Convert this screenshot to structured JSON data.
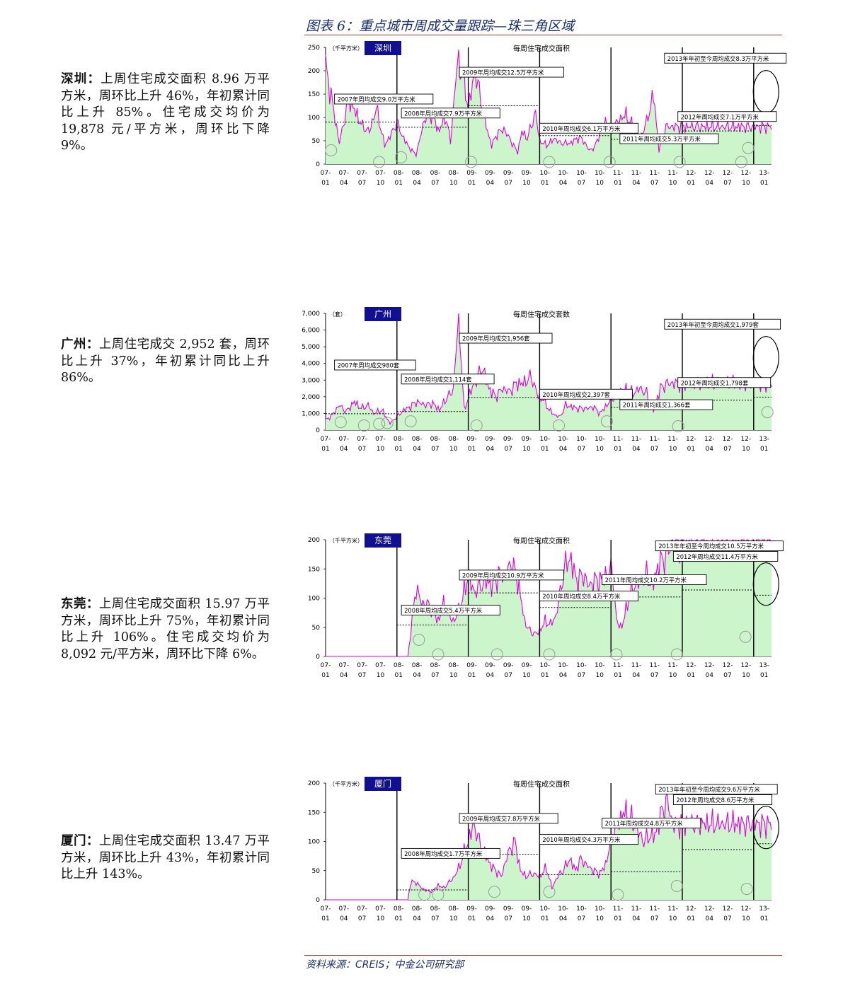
{
  "figure": {
    "title": "图表 6：重点城市周成交量跟踪—珠三角区域",
    "source": "资料来源：CREIS；中金公司研究部"
  },
  "colors": {
    "fill": "#ccf5cc",
    "line": "#e000e0",
    "navy": "#101090",
    "gray": "#9a9a9a"
  },
  "sections": [
    {
      "city": "深圳：",
      "text": "上周住宅成交面积 8.96 万平方米，周环比上升 46%，年初累计同比上升 85%。住宅成交均价为 19,878 元/平方米，周环比下降 9%。"
    },
    {
      "city": "广州：",
      "text": "上周住宅成交 2,952 套，周环比上升 37%，年初累计同比上升 86%。"
    },
    {
      "city": "东莞：",
      "text": "上周住宅成交面积 15.97 万平方米，周环比上升 75%，年初累计同比上升 106%。住宅成交均价为 8,092 元/平方米，周环比下降 6%。"
    },
    {
      "city": "厦门：",
      "text": "上周住宅成交面积 13.47 万平方米，周环比上升 43%，年初累计同比上升 143%。"
    }
  ],
  "chart_data": [
    {
      "type": "area",
      "city_label": "深圳",
      "title": "每周住宅成交面积",
      "unit": "（千平方米）",
      "ylim": [
        0,
        250
      ],
      "yticks": [
        "0",
        "50",
        "100",
        "150",
        "200",
        "250"
      ],
      "x_top": [
        "07-",
        "07-",
        "07-",
        "07-",
        "08-",
        "08-",
        "08-",
        "08-",
        "09-",
        "09-",
        "09-",
        "09-",
        "10-",
        "10-",
        "10-",
        "10-",
        "11-",
        "11-",
        "11-",
        "11-",
        "12-",
        "12-",
        "12-",
        "12-",
        "13-"
      ],
      "x_bottom": [
        "01",
        "04",
        "07",
        "10",
        "01",
        "04",
        "07",
        "10",
        "01",
        "04",
        "07",
        "10",
        "01",
        "04",
        "07",
        "10",
        "01",
        "04",
        "07",
        "10",
        "01",
        "04",
        "07",
        "10",
        "01"
      ],
      "annotations": [
        "2007年周均成交9.0万平方米",
        "2008年周均成交7.9万平方米",
        "2009年周均成交12.5万平方米",
        "2010年周均成交6.1万平方米",
        "2011年周均成交5.3万平方米",
        "2012年周均成交7.1万平方米",
        "2013年年初至今周均成交8.3万平方米"
      ],
      "year_avgs": [
        90,
        79,
        125,
        61,
        53,
        71,
        83
      ],
      "y_anchors": [
        [
          0,
          210
        ],
        [
          5,
          130
        ],
        [
          10,
          45
        ],
        [
          17,
          140
        ],
        [
          22,
          110
        ],
        [
          27,
          80
        ],
        [
          32,
          70
        ],
        [
          37,
          120
        ],
        [
          43,
          40
        ],
        [
          48,
          65
        ],
        [
          52,
          90
        ],
        [
          56,
          60
        ],
        [
          61,
          35
        ],
        [
          66,
          20
        ],
        [
          72,
          95
        ],
        [
          75,
          110
        ],
        [
          79,
          100
        ],
        [
          82,
          70
        ],
        [
          86,
          92
        ],
        [
          88,
          100
        ],
        [
          91,
          45
        ],
        [
          96,
          220
        ],
        [
          100,
          190
        ],
        [
          104,
          120
        ],
        [
          109,
          200
        ],
        [
          113,
          140
        ],
        [
          118,
          70
        ],
        [
          121,
          40
        ],
        [
          125,
          65
        ],
        [
          130,
          75
        ],
        [
          135,
          50
        ],
        [
          140,
          25
        ],
        [
          143,
          70
        ],
        [
          147,
          55
        ],
        [
          153,
          110
        ],
        [
          156,
          50
        ],
        [
          161,
          40
        ],
        [
          167,
          55
        ],
        [
          171,
          45
        ],
        [
          175,
          45
        ],
        [
          179,
          45
        ],
        [
          183,
          55
        ],
        [
          187,
          55
        ],
        [
          192,
          30
        ],
        [
          196,
          35
        ],
        [
          200,
          70
        ],
        [
          204,
          90
        ],
        [
          209,
          75
        ],
        [
          214,
          95
        ],
        [
          219,
          105
        ],
        [
          224,
          80
        ],
        [
          229,
          55
        ],
        [
          234,
          90
        ],
        [
          239,
          150
        ],
        [
          243,
          30
        ],
        [
          248,
          80
        ],
        [
          253,
          80
        ]
      ],
      "circles": [
        [
          4,
          25
        ],
        [
          39,
          0
        ],
        [
          55,
          10
        ],
        [
          106,
          0
        ],
        [
          163,
          0
        ],
        [
          207,
          0
        ],
        [
          258,
          0
        ],
        [
          303,
          0
        ],
        [
          308,
          30
        ]
      ]
    },
    {
      "type": "area",
      "city_label": "广州",
      "title": "每周住宅成交套数",
      "unit": "（套）",
      "ylim": [
        0,
        7000
      ],
      "yticks": [
        "0",
        "1,000",
        "2,000",
        "3,000",
        "4,000",
        "5,000",
        "6,000",
        "7,000"
      ],
      "x_top": [
        "07-",
        "07-",
        "07-",
        "07-",
        "08-",
        "08-",
        "08-",
        "08-",
        "09-",
        "09-",
        "09-",
        "09-",
        "10-",
        "10-",
        "10-",
        "10-",
        "11-",
        "11-",
        "11-",
        "11-",
        "12-",
        "12-",
        "12-",
        "12-",
        "13-"
      ],
      "x_bottom": [
        "01",
        "04",
        "07",
        "10",
        "01",
        "04",
        "07",
        "10",
        "01",
        "04",
        "07",
        "10",
        "01",
        "04",
        "07",
        "10",
        "01",
        "04",
        "07",
        "10",
        "01",
        "04",
        "07",
        "10",
        "01"
      ],
      "annotations": [
        "2007年周均成交980套",
        "2008年周均成交1,114套",
        "2009年周均成交1,956套",
        "2010年周均成交2,397套",
        "2011年周均成交1,366套",
        "2012年周均成交1,798套",
        "2013年年初至今周均成交1,979套"
      ],
      "year_avgs": [
        980,
        1114,
        1956,
        2397,
        1366,
        1798,
        1979
      ],
      "y_anchors": [
        [
          0,
          600
        ],
        [
          5,
          900
        ],
        [
          10,
          1500
        ],
        [
          15,
          1100
        ],
        [
          21,
          1700
        ],
        [
          26,
          1300
        ],
        [
          31,
          1500
        ],
        [
          35,
          1000
        ],
        [
          41,
          1200
        ],
        [
          47,
          400
        ],
        [
          52,
          800
        ],
        [
          57,
          1200
        ],
        [
          62,
          1400
        ],
        [
          66,
          1700
        ],
        [
          73,
          1500
        ],
        [
          78,
          1600
        ],
        [
          83,
          1200
        ],
        [
          88,
          1900
        ],
        [
          93,
          2400
        ],
        [
          97,
          7000
        ],
        [
          101,
          1200
        ],
        [
          105,
          2200
        ],
        [
          110,
          3000
        ],
        [
          114,
          3800
        ],
        [
          119,
          2500
        ],
        [
          124,
          2000
        ],
        [
          129,
          2500
        ],
        [
          134,
          2300
        ],
        [
          139,
          2800
        ],
        [
          144,
          2800
        ],
        [
          150,
          3200
        ],
        [
          155,
          2000
        ],
        [
          159,
          1800
        ],
        [
          163,
          1200
        ],
        [
          167,
          900
        ],
        [
          171,
          800
        ],
        [
          175,
          1500
        ],
        [
          179,
          1400
        ],
        [
          183,
          1300
        ],
        [
          187,
          1300
        ],
        [
          191,
          1300
        ],
        [
          195,
          1400
        ],
        [
          200,
          1000
        ],
        [
          205,
          1500
        ],
        [
          209,
          1900
        ],
        [
          214,
          2300
        ],
        [
          219,
          2400
        ],
        [
          224,
          2200
        ],
        [
          229,
          2500
        ],
        [
          234,
          2200
        ],
        [
          239,
          1200
        ],
        [
          244,
          2500
        ],
        [
          249,
          2800
        ]
      ],
      "circles": [
        [
          11,
          350
        ],
        [
          28,
          150
        ],
        [
          39,
          250
        ],
        [
          45,
          300
        ],
        [
          62,
          400
        ],
        [
          110,
          150
        ],
        [
          170,
          150
        ],
        [
          205,
          400
        ],
        [
          257,
          100
        ],
        [
          322,
          950
        ]
      ]
    },
    {
      "type": "area",
      "city_label": "东莞",
      "title": "每周住宅成交面积",
      "unit": "（千平方米）",
      "ylim": [
        0,
        200
      ],
      "yticks": [
        "0",
        "50",
        "100",
        "150",
        "200"
      ],
      "x_top": [
        "07-",
        "07-",
        "07-",
        "07-",
        "08-",
        "08-",
        "08-",
        "08-",
        "09-",
        "09-",
        "09-",
        "09-",
        "10-",
        "10-",
        "10-",
        "10-",
        "11-",
        "11-",
        "11-",
        "11-",
        "12-",
        "12-",
        "12-",
        "12-",
        "13-"
      ],
      "x_bottom": [
        "01",
        "04",
        "07",
        "10",
        "01",
        "04",
        "07",
        "10",
        "01",
        "04",
        "07",
        "10",
        "01",
        "04",
        "07",
        "10",
        "01",
        "04",
        "07",
        "10",
        "01",
        "04",
        "07",
        "10",
        "01"
      ],
      "annotations": [
        "2008年周均成交5.4万平方米",
        "2009年周均成交10.9万平方米",
        "2010年周均成交8.4万平方米",
        "2011年周均成交10.2万平方米",
        "2012年周均成交11.4万平方米",
        "2013年年初至今周均成交10.5万平方米"
      ],
      "year_avgs": [
        54,
        109,
        84,
        102,
        114,
        105
      ],
      "y_anchors": [
        [
          0,
          0
        ],
        [
          60,
          0
        ],
        [
          63,
          60
        ],
        [
          66,
          120
        ],
        [
          70,
          90
        ],
        [
          74,
          90
        ],
        [
          78,
          80
        ],
        [
          82,
          60
        ],
        [
          86,
          90
        ],
        [
          90,
          70
        ],
        [
          94,
          60
        ],
        [
          100,
          100
        ],
        [
          104,
          140
        ],
        [
          108,
          110
        ],
        [
          112,
          120
        ],
        [
          118,
          130
        ],
        [
          122,
          120
        ],
        [
          126,
          140
        ],
        [
          131,
          140
        ],
        [
          136,
          160
        ],
        [
          141,
          120
        ],
        [
          145,
          60
        ],
        [
          150,
          40
        ],
        [
          155,
          40
        ],
        [
          160,
          60
        ],
        [
          164,
          55
        ],
        [
          168,
          70
        ],
        [
          174,
          150
        ],
        [
          178,
          170
        ],
        [
          183,
          130
        ],
        [
          188,
          140
        ],
        [
          192,
          120
        ],
        [
          196,
          130
        ],
        [
          200,
          130
        ],
        [
          205,
          140
        ],
        [
          209,
          150
        ],
        [
          212,
          60
        ],
        [
          216,
          50
        ],
        [
          221,
          100
        ],
        [
          225,
          120
        ],
        [
          230,
          130
        ],
        [
          234,
          140
        ],
        [
          238,
          120
        ],
        [
          243,
          160
        ],
        [
          248,
          170
        ],
        [
          253,
          200
        ]
      ],
      "circles": [
        [
          68,
          25
        ],
        [
          82,
          0
        ],
        [
          125,
          0
        ],
        [
          163,
          0
        ],
        [
          212,
          0
        ],
        [
          256,
          0
        ],
        [
          306,
          30
        ]
      ]
    },
    {
      "type": "area",
      "city_label": "厦门",
      "title": "每周住宅成交面积",
      "unit": "（千平方米）",
      "ylim": [
        0,
        200
      ],
      "yticks": [
        "0",
        "50",
        "100",
        "150",
        "200"
      ],
      "x_top": [
        "07-",
        "07-",
        "07-",
        "07-",
        "08-",
        "08-",
        "08-",
        "08-",
        "09-",
        "09-",
        "09-",
        "09-",
        "10-",
        "10-",
        "10-",
        "10-",
        "11-",
        "11-",
        "11-",
        "11-",
        "12-",
        "12-",
        "12-",
        "12-",
        "13-"
      ],
      "x_bottom": [
        "01",
        "04",
        "07",
        "10",
        "01",
        "04",
        "07",
        "10",
        "01",
        "04",
        "07",
        "10",
        "01",
        "04",
        "07",
        "10",
        "01",
        "04",
        "07",
        "10",
        "01",
        "04",
        "07",
        "10",
        "01"
      ],
      "annotations": [
        "2008年周均成交1.7万平方米",
        "2009年周均成交7.8万平方米",
        "2010年周均成交4.3万平方米",
        "2011年周均成交4.8万平方米",
        "2012年周均成交8.6万平方米",
        "2013年年初至今周均成交9.6万平方米"
      ],
      "year_avgs": [
        17,
        78,
        43,
        48,
        86,
        96
      ],
      "y_anchors": [
        [
          0,
          0
        ],
        [
          60,
          0
        ],
        [
          62,
          30
        ],
        [
          66,
          30
        ],
        [
          70,
          20
        ],
        [
          74,
          15
        ],
        [
          78,
          15
        ],
        [
          82,
          25
        ],
        [
          86,
          20
        ],
        [
          90,
          30
        ],
        [
          94,
          40
        ],
        [
          98,
          60
        ],
        [
          104,
          100
        ],
        [
          108,
          130
        ],
        [
          112,
          100
        ],
        [
          116,
          80
        ],
        [
          120,
          60
        ],
        [
          124,
          50
        ],
        [
          128,
          40
        ],
        [
          133,
          80
        ],
        [
          138,
          100
        ],
        [
          142,
          50
        ],
        [
          146,
          40
        ],
        [
          151,
          45
        ],
        [
          156,
          40
        ],
        [
          161,
          55
        ],
        [
          165,
          20
        ],
        [
          169,
          40
        ],
        [
          173,
          50
        ],
        [
          178,
          70
        ],
        [
          182,
          50
        ],
        [
          186,
          70
        ],
        [
          190,
          60
        ],
        [
          195,
          50
        ],
        [
          200,
          45
        ],
        [
          204,
          60
        ],
        [
          209,
          110
        ],
        [
          213,
          130
        ],
        [
          217,
          150
        ],
        [
          222,
          140
        ],
        [
          227,
          120
        ],
        [
          232,
          100
        ],
        [
          236,
          110
        ],
        [
          240,
          110
        ],
        [
          245,
          150
        ],
        [
          249,
          170
        ],
        [
          253,
          130
        ]
      ],
      "circles": [
        [
          72,
          5
        ],
        [
          82,
          5
        ],
        [
          123,
          10
        ],
        [
          163,
          10
        ],
        [
          213,
          5
        ],
        [
          256,
          20
        ],
        [
          307,
          15
        ]
      ]
    }
  ]
}
